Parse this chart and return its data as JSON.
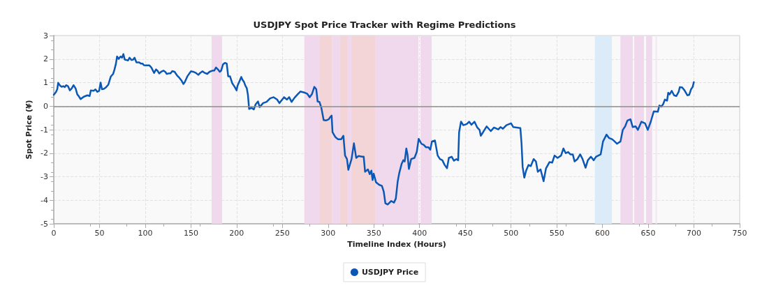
{
  "chart_data": {
    "type": "line",
    "title": "USDJPY Spot Price Tracker with Regime Predictions",
    "xlabel": "Timeline Index (Hours)",
    "ylabel": "Spot Price (¥)",
    "xlim": [
      0,
      750
    ],
    "xticks": [
      0,
      50,
      100,
      150,
      200,
      250,
      300,
      350,
      400,
      450,
      500,
      550,
      600,
      650,
      700,
      750
    ],
    "ylim": [
      -5,
      3
    ],
    "yticks": [
      -5,
      -4,
      -3,
      -2,
      -1,
      0,
      1,
      2,
      3
    ],
    "grid": true,
    "legend": "bottom",
    "marker": "none",
    "line_style": "solid",
    "ref_lines": [
      {
        "axis": "y",
        "value": 0,
        "color": "#8c8c8c"
      }
    ],
    "bands": [
      {
        "axis": "x",
        "from": 172.6,
        "to": 184,
        "color": "#f0d9ec"
      },
      {
        "axis": "x",
        "from": 274,
        "to": 291,
        "color": "#f0d9ec"
      },
      {
        "axis": "x",
        "from": 291,
        "to": 304.5,
        "color": "#f3d5d8"
      },
      {
        "axis": "x",
        "from": 304.5,
        "to": 313,
        "color": "#f0d9ec"
      },
      {
        "axis": "x",
        "from": 313,
        "to": 321.5,
        "color": "#f3d5d8"
      },
      {
        "axis": "x",
        "from": 321.5,
        "to": 325.4,
        "color": "#f0d9ec"
      },
      {
        "axis": "x",
        "from": 325.4,
        "to": 352,
        "color": "#f3d5d8"
      },
      {
        "axis": "x",
        "from": 352,
        "to": 398.7,
        "color": "#f0d9ec"
      },
      {
        "axis": "x",
        "from": 401,
        "to": 413.2,
        "color": "#f0d9ec"
      },
      {
        "axis": "x",
        "from": 591.7,
        "to": 610.2,
        "color": "#dcebf8"
      },
      {
        "axis": "x",
        "from": 619.6,
        "to": 633.2,
        "color": "#f0d9ec"
      },
      {
        "axis": "x",
        "from": 634.7,
        "to": 645.4,
        "color": "#f0d9ec"
      },
      {
        "axis": "x",
        "from": 647.7,
        "to": 654.3,
        "color": "#f0d9ec"
      },
      {
        "axis": "x",
        "from": 658,
        "to": 659.6,
        "color": "#f5e6f2"
      }
    ],
    "series": [
      {
        "name": "USDJPY Price",
        "color": "#0b57b5",
        "x": [
          0,
          2.3,
          3.8,
          4.8,
          6.9,
          8.7,
          10.4,
          12,
          13.5,
          15.5,
          17.6,
          19.6,
          21.6,
          23.9,
          25.7,
          27.2,
          29.3,
          32.8,
          36.7,
          39.2,
          40.5,
          43.5,
          45.6,
          47.6,
          49.6,
          51.2,
          52.7,
          54.7,
          57.3,
          59.6,
          60.8,
          62.4,
          64.9,
          66.4,
          68,
          69.2,
          71,
          73,
          74.6,
          76.1,
          77.6,
          79.7,
          81.2,
          82.8,
          85,
          86.8,
          88.3,
          90.4,
          93.4,
          95.2,
          97,
          98.5,
          101.6,
          104.6,
          106.7,
          109.7,
          111.8,
          113.3,
          115.3,
          117.4,
          119.9,
          121.9,
          123.5,
          125.5,
          127.5,
          129.6,
          132.1,
          134.7,
          137.2,
          139.8,
          141.8,
          143.6,
          146.1,
          150,
          152.5,
          155.5,
          158.1,
          160,
          162.6,
          165.2,
          167.8,
          170.3,
          173.4,
          175.4,
          177.4,
          179.5,
          181.5,
          183,
          185.1,
          187.1,
          189.1,
          190.7,
          192.7,
          195.2,
          197.8,
          199.9,
          200.9,
          203.4,
          205,
          206.5,
          208.1,
          209.5,
          211,
          212.3,
          213.6,
          216.2,
          218.7,
          220.8,
          223.3,
          225.1,
          228.9,
          232.7,
          236.5,
          240.4,
          244.2,
          246.7,
          251.8,
          254.9,
          257.4,
          260,
          263.3,
          266.6,
          269.6,
          274.7,
          277.3,
          279.8,
          282.4,
          284.9,
          287,
          288.5,
          290.5,
          292.6,
          295.1,
          297.6,
          300.7,
          302.2,
          303.8,
          304.8,
          307.8,
          310.9,
          314.2,
          316.7,
          318.5,
          320.6,
          322.1,
          325.6,
          328.2,
          330.7,
          333.3,
          337.1,
          338.9,
          340.4,
          343.5,
          345.5,
          347.3,
          348.6,
          349.8,
          352.4,
          355.7,
          358.8,
          360.8,
          362.6,
          365.1,
          368.9,
          372,
          374,
          376.1,
          377.8,
          380.4,
          382.2,
          383.7,
          385.5,
          386.8,
          388.3,
          390.8,
          394.4,
          396.9,
          399,
          402,
          404.6,
          407.1,
          409.7,
          411.7,
          413.5,
          416.8,
          419.8,
          422.3,
          424.9,
          427.4,
          430,
          432,
          435.1,
          437.6,
          440.2,
          442.2,
          443.2,
          445.3,
          447.8,
          451.6,
          454.2,
          456.7,
          460,
          463.1,
          465.6,
          466.9,
          469.4,
          473.3,
          477.8,
          481.4,
          486,
          488.5,
          491.1,
          494.9,
          500,
          502.5,
          506.4,
          510.2,
          511.5,
          512.7,
          514.5,
          516.5,
          519.1,
          521.6,
          524.7,
          527.2,
          529.3,
          532.3,
          535.6,
          538.2,
          542,
          545,
          547.6,
          550.9,
          554.7,
          557.3,
          559.8,
          562.4,
          564.9,
          567.5,
          569.5,
          572.6,
          575.6,
          578.2,
          581.5,
          584,
          587.3,
          590.4,
          592.9,
          595.5,
          598,
          600.6,
          604.4,
          607,
          610.7,
          613.3,
          615.8,
          619.7,
          622.2,
          624.8,
          627.3,
          630.6,
          633.1,
          636.2,
          638.7,
          642.6,
          646.5,
          649.5,
          652.8,
          656.1,
          660.5,
          662.2,
          664.3,
          666.3,
          668.3,
          670.6,
          671.9,
          673.4,
          675.7,
          678.3,
          680.8,
          683.4,
          684.6,
          687.2,
          689.7,
          692.8,
          694.8,
          696.9,
          698.6,
          699.9
        ],
        "values": [
          0.48,
          0.59,
          0.72,
          0.99,
          0.87,
          0.82,
          0.85,
          0.81,
          0.89,
          0.85,
          0.67,
          0.75,
          0.89,
          0.75,
          0.5,
          0.43,
          0.3,
          0.4,
          0.46,
          0.43,
          0.67,
          0.65,
          0.71,
          0.61,
          0.65,
          1,
          0.72,
          0.73,
          0.81,
          0.91,
          1.06,
          1.26,
          1.37,
          1.56,
          1.81,
          2.11,
          2.01,
          2.11,
          2.06,
          2.21,
          1.98,
          1.96,
          1.94,
          2.06,
          1.96,
          1.98,
          2.06,
          1.86,
          1.86,
          1.81,
          1.81,
          1.74,
          1.73,
          1.73,
          1.64,
          1.41,
          1.56,
          1.51,
          1.39,
          1.46,
          1.51,
          1.46,
          1.37,
          1.39,
          1.39,
          1.49,
          1.46,
          1.31,
          1.21,
          1.08,
          0.94,
          1.05,
          1.27,
          1.48,
          1.46,
          1.41,
          1.33,
          1.41,
          1.48,
          1.41,
          1.37,
          1.46,
          1.51,
          1.51,
          1.64,
          1.56,
          1.46,
          1.51,
          1.78,
          1.84,
          1.81,
          1.27,
          1.27,
          0.97,
          0.82,
          0.67,
          0.87,
          1.09,
          1.24,
          1.11,
          1.02,
          0.87,
          0.77,
          0.48,
          -0.12,
          -0.07,
          -0.14,
          0.08,
          0.2,
          -0.04,
          0.13,
          0.18,
          0.33,
          0.38,
          0.28,
          0.13,
          0.38,
          0.28,
          0.38,
          0.18,
          0.36,
          0.5,
          0.62,
          0.57,
          0.52,
          0.38,
          0.52,
          0.82,
          0.72,
          0.2,
          0.18,
          -0.07,
          -0.59,
          -0.61,
          -0.56,
          -0.47,
          -0.4,
          -1.11,
          -1.31,
          -1.41,
          -1.41,
          -1.26,
          -2.1,
          -2.25,
          -2.71,
          -2.25,
          -1.58,
          -2.2,
          -2.12,
          -2.15,
          -2.15,
          -2.79,
          -2.69,
          -2.89,
          -2.74,
          -3.14,
          -2.87,
          -3.24,
          -3.34,
          -3.39,
          -3.63,
          -4.13,
          -4.18,
          -4.03,
          -4.1,
          -3.93,
          -3.19,
          -2.84,
          -2.45,
          -2.3,
          -2.35,
          -1.8,
          -2.05,
          -2.67,
          -2.25,
          -2.2,
          -1.95,
          -1.39,
          -1.6,
          -1.65,
          -1.75,
          -1.75,
          -1.85,
          -1.5,
          -1.46,
          -2.1,
          -2.25,
          -2.3,
          -2.5,
          -2.64,
          -2.2,
          -2.15,
          -2.32,
          -2.25,
          -2.3,
          -1.11,
          -0.66,
          -0.81,
          -0.76,
          -0.66,
          -0.79,
          -0.66,
          -0.91,
          -1.01,
          -1.26,
          -1.11,
          -0.86,
          -1.06,
          -0.91,
          -0.99,
          -0.89,
          -0.96,
          -0.81,
          -0.73,
          -0.89,
          -0.91,
          -0.93,
          -1.6,
          -2.59,
          -3.04,
          -2.74,
          -2.5,
          -2.55,
          -2.25,
          -2.35,
          -2.79,
          -2.69,
          -3.19,
          -2.65,
          -2.38,
          -2.4,
          -2.1,
          -2.2,
          -2.1,
          -1.8,
          -2,
          -1.95,
          -2.05,
          -2.05,
          -2.35,
          -2.25,
          -2.05,
          -2.25,
          -2.62,
          -2.3,
          -2.15,
          -2.3,
          -2.15,
          -2.1,
          -2.05,
          -1.5,
          -1.21,
          -1.35,
          -1.41,
          -1.5,
          -1.6,
          -1.5,
          -1.01,
          -0.86,
          -0.61,
          -0.56,
          -0.89,
          -0.86,
          -1.01,
          -0.66,
          -0.73,
          -1.01,
          -0.66,
          -0.22,
          -0.24,
          0.03,
          -0.02,
          0.08,
          0.28,
          0.23,
          0.57,
          0.5,
          0.65,
          0.46,
          0.43,
          0.62,
          0.81,
          0.79,
          0.67,
          0.46,
          0.48,
          0.72,
          0.82,
          1.02
        ]
      }
    ]
  }
}
